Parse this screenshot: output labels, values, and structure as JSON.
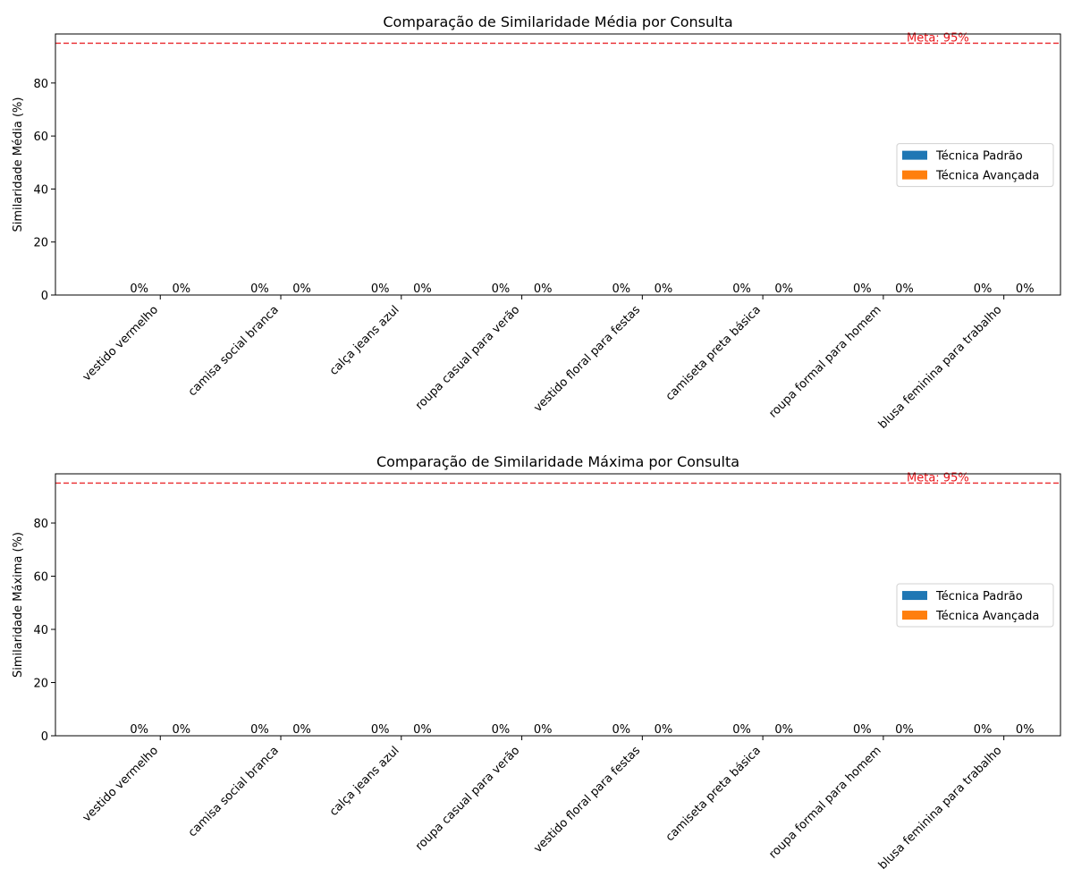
{
  "chart_data": [
    {
      "type": "bar",
      "title": "Comparação de Similaridade Média por Consulta",
      "xlabel": "",
      "ylabel": "Similaridade Média (%)",
      "ylim": [
        0,
        98.5
      ],
      "yticks": [
        "0",
        "20",
        "40",
        "60",
        "80"
      ],
      "categories": [
        "vestido vermelho",
        "camisa social branca",
        "calça jeans azul",
        "roupa casual para verão",
        "vestido floral para festas",
        "camiseta preta básica",
        "roupa formal para homem",
        "blusa feminina para trabalho"
      ],
      "series": [
        {
          "name": "Técnica Padrão",
          "color": "#1f77b4",
          "values": [
            0,
            0,
            0,
            0,
            0,
            0,
            0,
            0
          ],
          "labels": [
            "0%",
            "0%",
            "0%",
            "0%",
            "0%",
            "0%",
            "0%",
            "0%"
          ]
        },
        {
          "name": "Técnica Avançada",
          "color": "#ff7f0e",
          "values": [
            0,
            0,
            0,
            0,
            0,
            0,
            0,
            0
          ],
          "labels": [
            "0%",
            "0%",
            "0%",
            "0%",
            "0%",
            "0%",
            "0%",
            "0%"
          ]
        }
      ],
      "goal": {
        "value": 95,
        "label": "Meta: 95%",
        "color": "#e8161b"
      },
      "legend": "center-right",
      "grid": false
    },
    {
      "type": "bar",
      "title": "Comparação de Similaridade Máxima por Consulta",
      "xlabel": "",
      "ylabel": "Similaridade Máxima (%)",
      "ylim": [
        0,
        98.5
      ],
      "yticks": [
        "0",
        "20",
        "40",
        "60",
        "80"
      ],
      "categories": [
        "vestido vermelho",
        "camisa social branca",
        "calça jeans azul",
        "roupa casual para verão",
        "vestido floral para festas",
        "camiseta preta básica",
        "roupa formal para homem",
        "blusa feminina para trabalho"
      ],
      "series": [
        {
          "name": "Técnica Padrão",
          "color": "#1f77b4",
          "values": [
            0,
            0,
            0,
            0,
            0,
            0,
            0,
            0
          ],
          "labels": [
            "0%",
            "0%",
            "0%",
            "0%",
            "0%",
            "0%",
            "0%",
            "0%"
          ]
        },
        {
          "name": "Técnica Avançada",
          "color": "#ff7f0e",
          "values": [
            0,
            0,
            0,
            0,
            0,
            0,
            0,
            0
          ],
          "labels": [
            "0%",
            "0%",
            "0%",
            "0%",
            "0%",
            "0%",
            "0%",
            "0%"
          ]
        }
      ],
      "goal": {
        "value": 95,
        "label": "Meta: 95%",
        "color": "#e8161b"
      },
      "legend": "center-right",
      "grid": false
    }
  ]
}
